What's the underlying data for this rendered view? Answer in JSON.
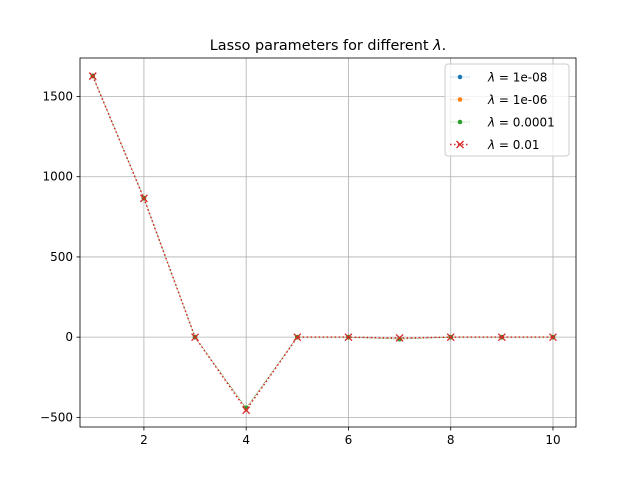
{
  "chart_data": {
    "type": "line",
    "title_prefix": "Lasso parameters for different ",
    "title_symbol": "λ",
    "title_suffix": ".",
    "xlabel": "",
    "ylabel": "",
    "xlim": [
      0.75,
      10.45
    ],
    "ylim": [
      -560,
      1740
    ],
    "xticks": [
      2,
      4,
      6,
      8,
      10
    ],
    "yticks": [
      -500,
      0,
      500,
      1000,
      1500
    ],
    "grid": true,
    "legend_placement": "top-right",
    "x": [
      1,
      2,
      3,
      4,
      5,
      6,
      7,
      8,
      9,
      10
    ],
    "series": [
      {
        "name_symbol": "λ",
        "name_value": "= 1e-08",
        "color": "#1f77b4",
        "marker": "dot",
        "line_style": "dotted-thin",
        "values": [
          1628,
          866,
          0,
          -445,
          0,
          0,
          -12,
          0,
          0,
          0
        ]
      },
      {
        "name_symbol": "λ",
        "name_value": "= 1e-06",
        "color": "#ff7f0e",
        "marker": "dot",
        "line_style": "dotted-thin",
        "values": [
          1628,
          866,
          0,
          -445,
          0,
          0,
          -12,
          0,
          0,
          0
        ]
      },
      {
        "name_symbol": "λ",
        "name_value": "= 0.0001",
        "color": "#2ca02c",
        "marker": "dot",
        "line_style": "dotted-thin",
        "values": [
          1628,
          866,
          0,
          -440,
          0,
          0,
          -12,
          0,
          0,
          0
        ]
      },
      {
        "name_symbol": "λ",
        "name_value": "= 0.01",
        "color": "#d62728",
        "marker": "x",
        "line_style": "dotted",
        "values": [
          1627,
          865,
          0,
          -455,
          0,
          0,
          -5,
          0,
          0,
          0
        ]
      }
    ]
  }
}
